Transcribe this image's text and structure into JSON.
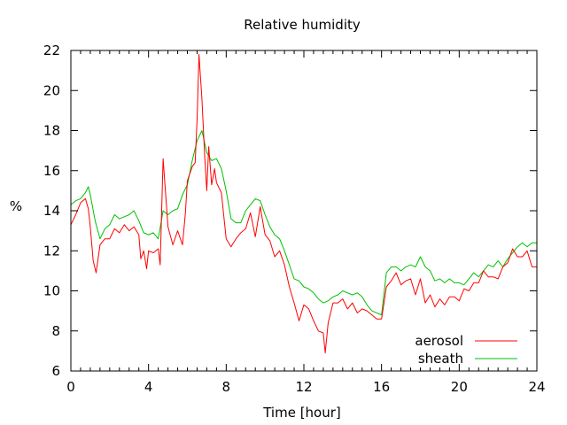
{
  "chart_data": {
    "type": "line",
    "title": "Relative humidity",
    "xlabel": "Time [hour]",
    "ylabel": "%",
    "xlim": [
      0,
      24
    ],
    "ylim": [
      6,
      22
    ],
    "xticks": [
      0,
      4,
      8,
      12,
      16,
      20,
      24
    ],
    "yticks": [
      6,
      8,
      10,
      12,
      14,
      16,
      18,
      20,
      22
    ],
    "grid": false,
    "legend_position": "bottom-right",
    "series": [
      {
        "name": "aerosol",
        "color": "#ff0000",
        "x": [
          0,
          0.25,
          0.5,
          0.75,
          0.9,
          1.0,
          1.15,
          1.3,
          1.5,
          1.75,
          2.0,
          2.25,
          2.5,
          2.75,
          3.0,
          3.25,
          3.5,
          3.6,
          3.75,
          3.9,
          4.0,
          4.25,
          4.5,
          4.6,
          4.75,
          5.0,
          5.25,
          5.5,
          5.75,
          5.9,
          6.0,
          6.25,
          6.4,
          6.5,
          6.6,
          6.75,
          6.9,
          7.0,
          7.1,
          7.25,
          7.4,
          7.5,
          7.75,
          8.0,
          8.25,
          8.5,
          8.75,
          9.0,
          9.25,
          9.5,
          9.75,
          10.0,
          10.25,
          10.5,
          10.75,
          11.0,
          11.25,
          11.5,
          11.75,
          12.0,
          12.25,
          12.5,
          12.75,
          13.0,
          13.1,
          13.25,
          13.5,
          13.75,
          14.0,
          14.25,
          14.5,
          14.75,
          15.0,
          15.25,
          15.5,
          15.75,
          16.0,
          16.25,
          16.5,
          16.75,
          17.0,
          17.25,
          17.5,
          17.75,
          18.0,
          18.25,
          18.5,
          18.75,
          19.0,
          19.25,
          19.5,
          19.75,
          20.0,
          20.25,
          20.5,
          20.75,
          21.0,
          21.25,
          21.5,
          21.75,
          22.0,
          22.25,
          22.5,
          22.75,
          23.0,
          23.25,
          23.5,
          23.75,
          24.0
        ],
        "values": [
          13.3,
          13.8,
          14.4,
          14.6,
          14.1,
          13.2,
          11.5,
          10.9,
          12.3,
          12.6,
          12.6,
          13.1,
          12.9,
          13.3,
          13.0,
          13.2,
          12.8,
          11.6,
          12.0,
          11.1,
          12.0,
          11.9,
          12.1,
          11.3,
          16.6,
          13.2,
          12.3,
          13.0,
          12.3,
          13.9,
          15.5,
          16.2,
          16.4,
          18.6,
          21.8,
          19.6,
          16.6,
          15.0,
          17.2,
          15.3,
          16.1,
          15.4,
          14.9,
          12.6,
          12.2,
          12.6,
          12.9,
          13.1,
          13.9,
          12.7,
          14.2,
          12.8,
          12.5,
          11.7,
          12.0,
          11.3,
          10.2,
          9.4,
          8.5,
          9.3,
          9.1,
          8.5,
          8.0,
          7.9,
          6.9,
          8.4,
          9.4,
          9.4,
          9.6,
          9.1,
          9.4,
          8.9,
          9.1,
          9.0,
          8.8,
          8.6,
          8.6,
          10.2,
          10.5,
          10.9,
          10.3,
          10.5,
          10.6,
          9.8,
          10.6,
          9.4,
          9.8,
          9.2,
          9.6,
          9.3,
          9.7,
          9.7,
          9.5,
          10.1,
          10.0,
          10.4,
          10.4,
          11.0,
          10.7,
          10.7,
          10.6,
          11.2,
          11.4,
          12.1,
          11.7,
          11.7,
          12.0,
          11.2,
          11.2
        ]
      },
      {
        "name": "sheath",
        "color": "#00c000",
        "x": [
          0,
          0.25,
          0.5,
          0.75,
          0.9,
          1.0,
          1.25,
          1.5,
          1.75,
          2.0,
          2.25,
          2.5,
          2.75,
          3.0,
          3.25,
          3.5,
          3.75,
          4.0,
          4.25,
          4.5,
          4.75,
          5.0,
          5.25,
          5.5,
          5.75,
          6.0,
          6.25,
          6.5,
          6.75,
          7.0,
          7.25,
          7.5,
          7.75,
          8.0,
          8.25,
          8.5,
          8.75,
          9.0,
          9.25,
          9.5,
          9.75,
          10.0,
          10.25,
          10.5,
          10.75,
          11.0,
          11.25,
          11.5,
          11.75,
          12.0,
          12.25,
          12.5,
          12.75,
          13.0,
          13.25,
          13.5,
          13.75,
          14.0,
          14.25,
          14.5,
          14.75,
          15.0,
          15.25,
          15.5,
          15.75,
          16.0,
          16.25,
          16.5,
          16.75,
          17.0,
          17.25,
          17.5,
          17.75,
          18.0,
          18.25,
          18.5,
          18.75,
          19.0,
          19.25,
          19.5,
          19.75,
          20.0,
          20.25,
          20.5,
          20.75,
          21.0,
          21.25,
          21.5,
          21.75,
          22.0,
          22.25,
          22.5,
          22.75,
          23.0,
          23.25,
          23.5,
          23.75,
          24.0
        ],
        "values": [
          14.3,
          14.5,
          14.6,
          14.9,
          15.2,
          14.8,
          13.5,
          12.6,
          13.1,
          13.3,
          13.8,
          13.6,
          13.7,
          13.8,
          14.0,
          13.5,
          12.9,
          12.8,
          12.9,
          12.6,
          14.0,
          13.8,
          14.0,
          14.1,
          14.8,
          15.3,
          16.5,
          17.5,
          18.0,
          16.9,
          16.5,
          16.6,
          16.1,
          15.0,
          13.6,
          13.4,
          13.4,
          14.0,
          14.3,
          14.6,
          14.5,
          13.8,
          13.2,
          12.8,
          12.6,
          12.0,
          11.3,
          10.6,
          10.5,
          10.2,
          10.1,
          9.9,
          9.6,
          9.4,
          9.5,
          9.7,
          9.8,
          10.0,
          9.9,
          9.8,
          9.9,
          9.7,
          9.3,
          9.0,
          8.9,
          8.8,
          10.9,
          11.2,
          11.2,
          11.0,
          11.2,
          11.3,
          11.2,
          11.7,
          11.2,
          11.0,
          10.5,
          10.6,
          10.4,
          10.6,
          10.4,
          10.4,
          10.3,
          10.6,
          10.9,
          10.7,
          11.0,
          11.3,
          11.2,
          11.5,
          11.2,
          11.6,
          11.9,
          12.2,
          12.4,
          12.2,
          12.4,
          12.4
        ]
      }
    ]
  }
}
